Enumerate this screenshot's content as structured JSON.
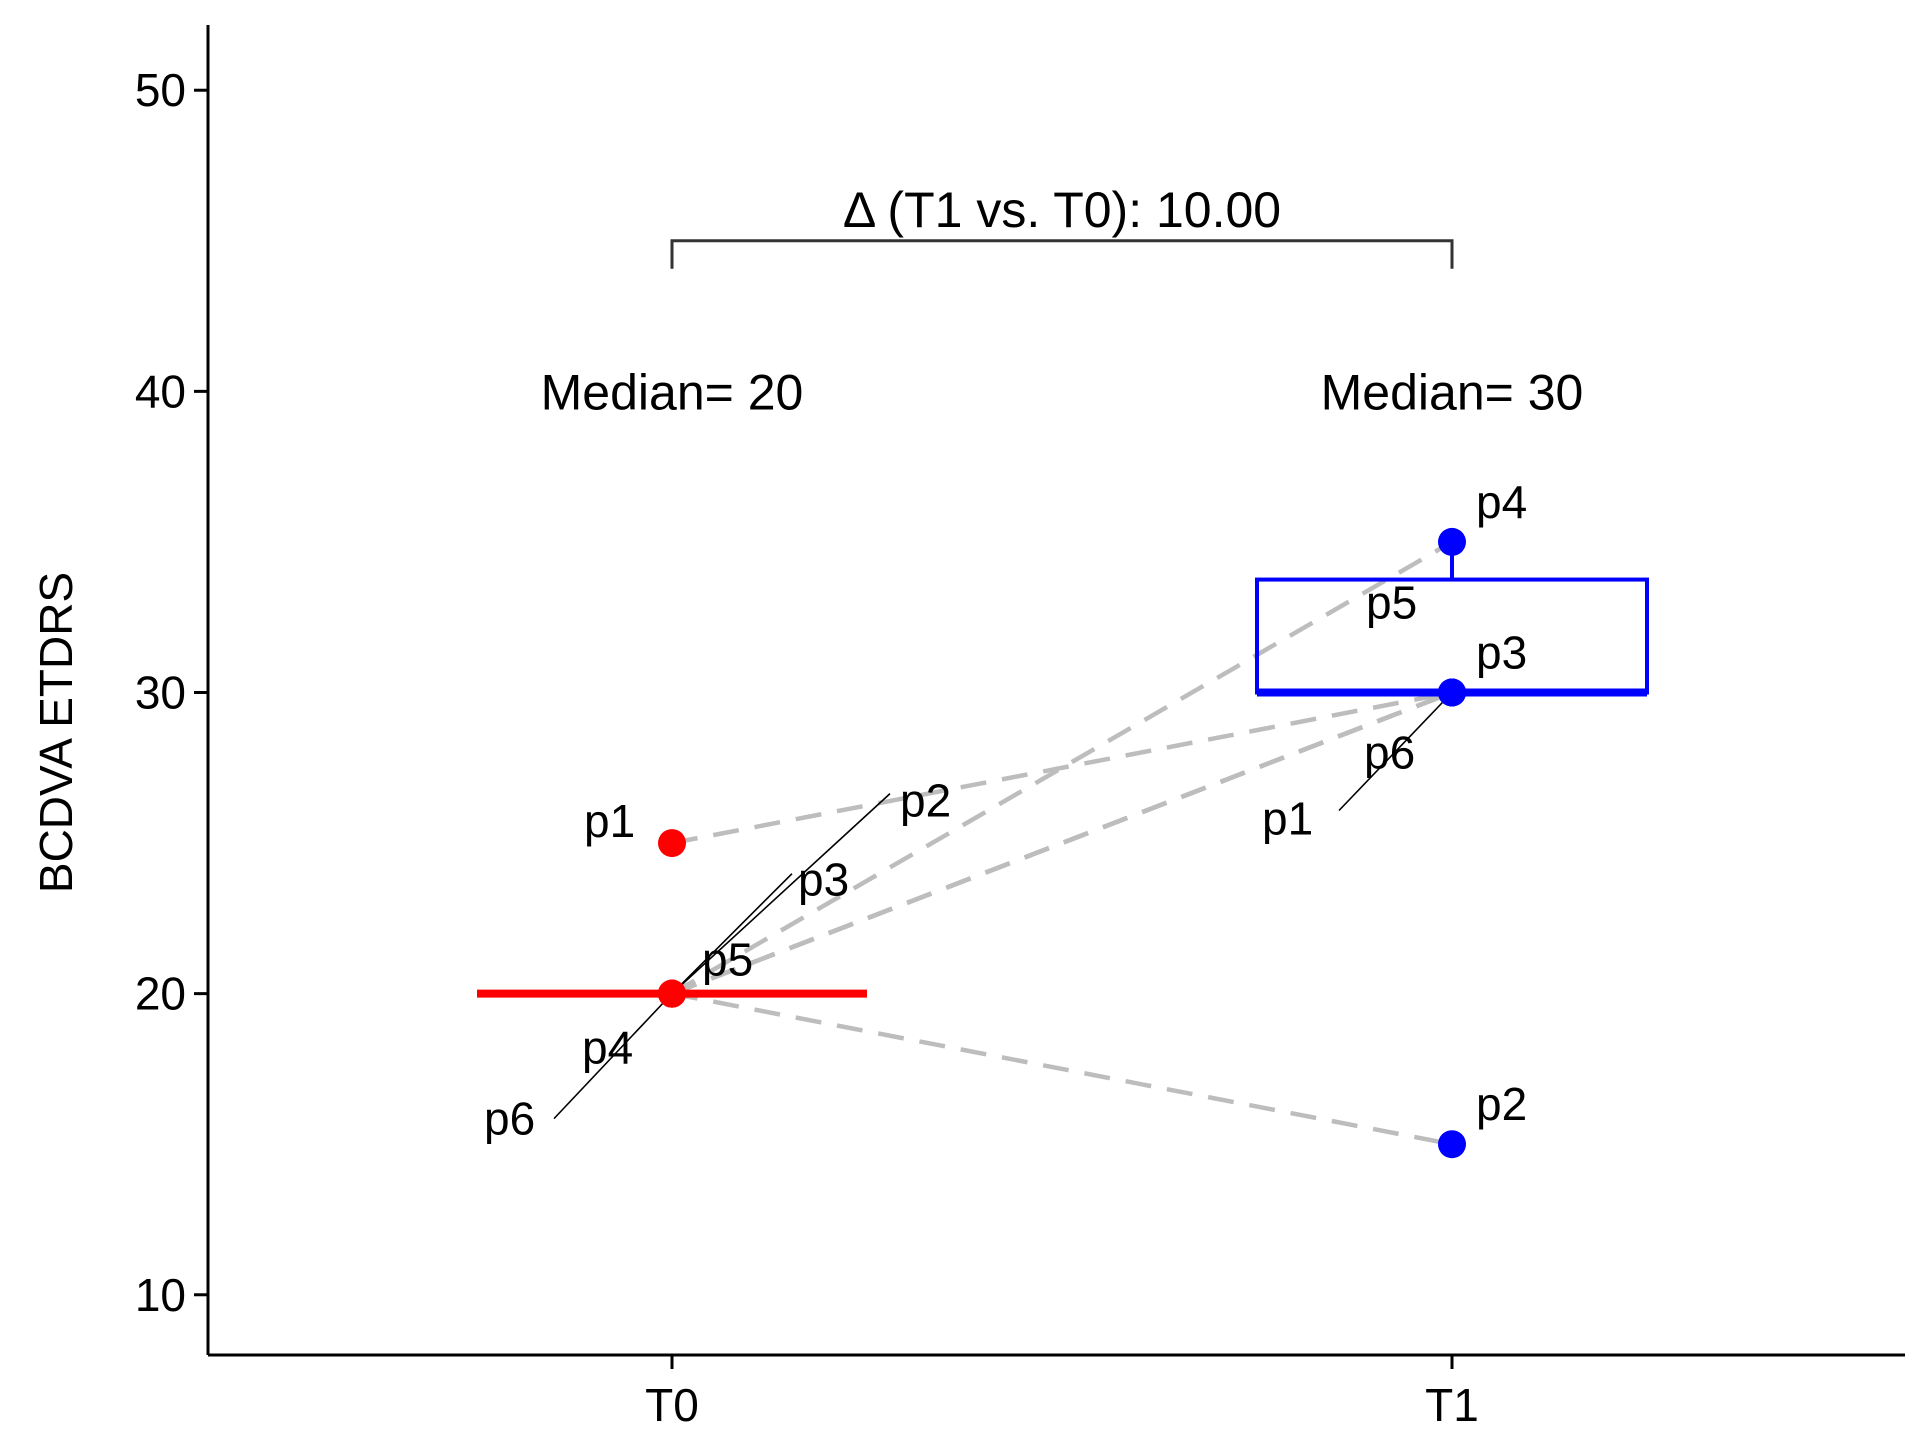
{
  "chart_data": {
    "type": "scatter",
    "xlabel": "",
    "ylabel": "BCDVA ETDRS",
    "ylim": [
      8,
      52
    ],
    "yticks": [
      10,
      20,
      30,
      40,
      50
    ],
    "categories": [
      "T0",
      "T1"
    ],
    "grid": false,
    "series": [
      {
        "category": "T0",
        "color": "#ff0000",
        "points": [
          {
            "label": "p1",
            "y": 25
          },
          {
            "label": "p2",
            "y": 20
          },
          {
            "label": "p3",
            "y": 20
          },
          {
            "label": "p4",
            "y": 20
          },
          {
            "label": "p5",
            "y": 20
          },
          {
            "label": "p6",
            "y": 20
          }
        ],
        "median": 20,
        "median_label": "Median= 20"
      },
      {
        "category": "T1",
        "color": "#0000ff",
        "points": [
          {
            "label": "p1",
            "y": 30
          },
          {
            "label": "p2",
            "y": 15
          },
          {
            "label": "p3",
            "y": 30
          },
          {
            "label": "p4",
            "y": 35
          },
          {
            "label": "p5",
            "y": 30
          },
          {
            "label": "p6",
            "y": 30
          }
        ],
        "box": {
          "q1": 30,
          "median": 30,
          "q3": 33.75,
          "whisker_low": 30,
          "whisker_high": 35
        },
        "median": 30,
        "median_label": "Median= 30"
      }
    ],
    "pairs": [
      {
        "label": "p1",
        "t0": 25,
        "t1": 30
      },
      {
        "label": "p2",
        "t0": 20,
        "t1": 15
      },
      {
        "label": "p3",
        "t0": 20,
        "t1": 30
      },
      {
        "label": "p4",
        "t0": 20,
        "t1": 35
      },
      {
        "label": "p5",
        "t0": 20,
        "t1": 30
      },
      {
        "label": "p6",
        "t0": 20,
        "t1": 30
      }
    ],
    "bracket": {
      "y": 45,
      "label": "Δ (T1 vs. T0): 10.00"
    },
    "colors": {
      "t0": "#ff0000",
      "t1": "#0000ff",
      "pair_line": "#bdbdbd",
      "axis": "#000000"
    }
  }
}
